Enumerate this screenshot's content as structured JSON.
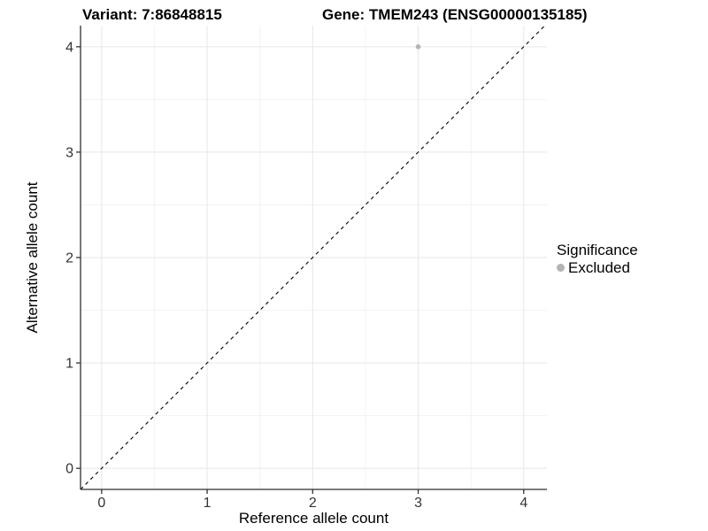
{
  "header": {
    "variant_title": "Variant: 7:86848815",
    "gene_title": "Gene: TMEM243 (ENSG00000135185)"
  },
  "chart_data": {
    "type": "scatter",
    "title_left": "Variant: 7:86848815",
    "title_right": "Gene: TMEM243 (ENSG00000135185)",
    "xlabel": "Reference allele count",
    "ylabel": "Alternative allele count",
    "xlim": [
      -0.2,
      4.22
    ],
    "ylim": [
      -0.2,
      4.2
    ],
    "x_ticks": [
      0,
      1,
      2,
      3,
      4
    ],
    "y_ticks": [
      0,
      1,
      2,
      3,
      4
    ],
    "grid": {
      "major": true,
      "minor": true
    },
    "reference_line": {
      "kind": "identity y=x",
      "style": "dashed",
      "color": "#000000"
    },
    "series": [
      {
        "name": "Excluded",
        "color": "#b4b4b4",
        "points": [
          {
            "x": 3,
            "y": 4
          }
        ]
      }
    ],
    "legend": {
      "position": "right",
      "title": "Significance",
      "items": [
        {
          "label": "Excluded",
          "color": "#b4b4b4"
        }
      ]
    },
    "colors": {
      "grid_major": "#e7e7e7",
      "grid_minor": "#f3f3f3",
      "axis_line": "#2e2e2e",
      "tick_mark": "#333333",
      "tick_text": "#333333",
      "point": "#b4b4b4",
      "background": "#ffffff"
    }
  }
}
